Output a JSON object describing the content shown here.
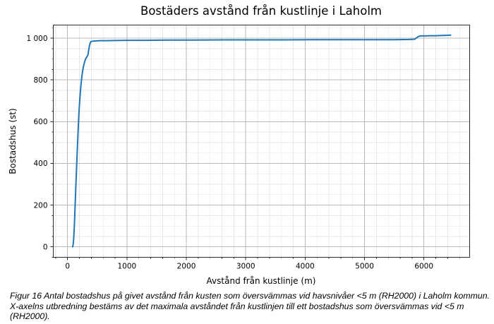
{
  "figure": {
    "title": "Bostäders avstånd från kustlinje i Laholm",
    "xlabel": "Avstånd från kustlinje (m)",
    "ylabel": "Bostadshus (st)"
  },
  "caption": "Figur 16 Antal bostadshus på givet avstånd från kusten som översvämmas vid havsnivåer <5 m (RH2000) i Laholm kommun. X-axelns utbredning bestäms av det maximala avståndet från kustlinjen till ett bostadshus som översvämmas vid <5 m (RH2000).",
  "colors": {
    "line": "#1f77b4",
    "grid_major": "#b9b9b9",
    "grid_minor": "#e7e7e7",
    "spine": "#2a2a2a",
    "text": "#000000"
  },
  "chart_data": {
    "type": "line",
    "title": "Bostäders avstånd från kustlinje i Laholm",
    "xlabel": "Avstånd från kustlinje (m)",
    "ylabel": "Bostadshus (st)",
    "xlim": [
      -240,
      6770
    ],
    "ylim": [
      -50,
      1063
    ],
    "x_major_ticks": [
      0,
      1000,
      2000,
      3000,
      4000,
      5000,
      6000
    ],
    "x_tick_labels": [
      "0",
      "1000",
      "2000",
      "3000",
      "4000",
      "5000",
      "6000"
    ],
    "x_minor_step": 200,
    "y_major_ticks": [
      0,
      200,
      400,
      600,
      800,
      1000
    ],
    "y_tick_labels": [
      "0",
      "200",
      "400",
      "600",
      "800",
      "1 000"
    ],
    "y_minor_step": 50,
    "grid": true,
    "legend_position": "none",
    "points": [
      [
        85,
        0
      ],
      [
        92,
        8
      ],
      [
        98,
        20
      ],
      [
        103,
        38
      ],
      [
        108,
        62
      ],
      [
        113,
        90
      ],
      [
        118,
        125
      ],
      [
        125,
        180
      ],
      [
        133,
        240
      ],
      [
        140,
        292
      ],
      [
        148,
        350
      ],
      [
        155,
        400
      ],
      [
        162,
        450
      ],
      [
        170,
        502
      ],
      [
        178,
        555
      ],
      [
        186,
        605
      ],
      [
        195,
        655
      ],
      [
        205,
        700
      ],
      [
        215,
        740
      ],
      [
        226,
        775
      ],
      [
        238,
        808
      ],
      [
        250,
        835
      ],
      [
        262,
        856
      ],
      [
        275,
        873
      ],
      [
        288,
        887
      ],
      [
        300,
        897
      ],
      [
        312,
        905
      ],
      [
        325,
        911
      ],
      [
        338,
        916
      ],
      [
        345,
        922
      ],
      [
        352,
        936
      ],
      [
        360,
        950
      ],
      [
        370,
        965
      ],
      [
        380,
        976
      ],
      [
        390,
        982
      ],
      [
        405,
        985
      ],
      [
        430,
        986
      ],
      [
        470,
        987
      ],
      [
        550,
        988
      ],
      [
        650,
        988
      ],
      [
        800,
        989
      ],
      [
        1000,
        990
      ],
      [
        1300,
        990
      ],
      [
        1700,
        991
      ],
      [
        2100,
        991
      ],
      [
        2600,
        992
      ],
      [
        3100,
        992
      ],
      [
        3600,
        992
      ],
      [
        4100,
        993
      ],
      [
        4600,
        993
      ],
      [
        5100,
        993
      ],
      [
        5500,
        993
      ],
      [
        5750,
        994
      ],
      [
        5840,
        995
      ],
      [
        5865,
        999
      ],
      [
        5885,
        1004
      ],
      [
        5905,
        1008
      ],
      [
        5925,
        1010
      ],
      [
        5960,
        1011
      ],
      [
        6020,
        1011
      ],
      [
        6100,
        1012
      ],
      [
        6200,
        1012
      ],
      [
        6300,
        1013
      ],
      [
        6400,
        1014
      ],
      [
        6450,
        1015
      ]
    ]
  }
}
